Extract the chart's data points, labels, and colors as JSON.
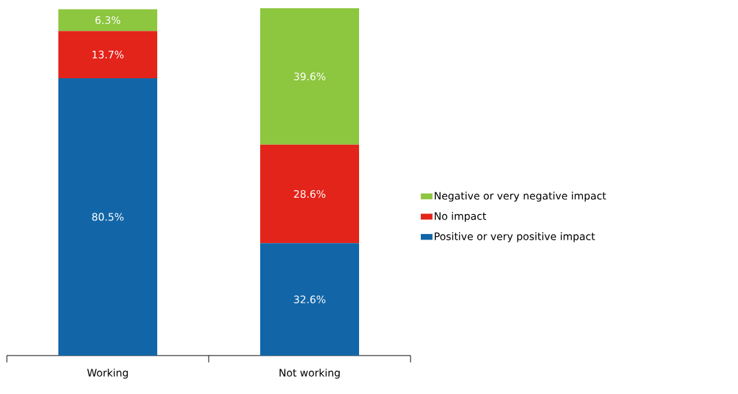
{
  "chart_data": {
    "type": "bar",
    "stacked": true,
    "categories": [
      "Working",
      "Not working"
    ],
    "series": [
      {
        "name": "Positive or very positive impact",
        "color": "#1266a8",
        "values": [
          80.5,
          32.6
        ],
        "value_labels": [
          "80.5%",
          "32.6%"
        ]
      },
      {
        "name": "No impact",
        "color": "#e3241b",
        "values": [
          13.7,
          28.6
        ],
        "value_labels": [
          "13.7%",
          "28.6%"
        ]
      },
      {
        "name": "Negative or very negative impact",
        "color": "#8dc63f",
        "values": [
          6.3,
          39.6
        ],
        "value_labels": [
          "6.3%",
          "39.6%"
        ]
      }
    ],
    "legend": "right"
  }
}
